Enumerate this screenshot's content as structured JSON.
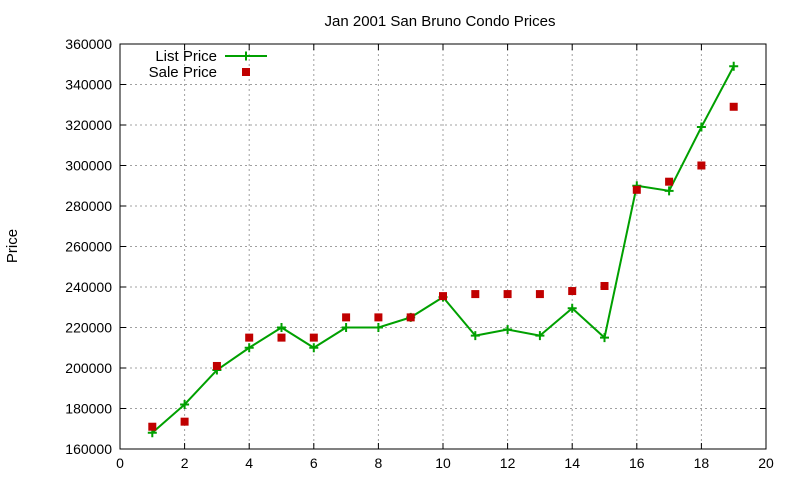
{
  "chart_data": {
    "type": "scatter",
    "title": "Jan 2001 San Bruno Condo Prices",
    "xlabel": "",
    "ylabel": "Price",
    "xlim": [
      0,
      20
    ],
    "ylim": [
      160000,
      360000
    ],
    "xticks": [
      "0",
      "2",
      "4",
      "6",
      "8",
      "10",
      "12",
      "14",
      "16",
      "18",
      "20"
    ],
    "yticks": [
      "160000",
      "180000",
      "200000",
      "220000",
      "240000",
      "260000",
      "280000",
      "300000",
      "320000",
      "340000",
      "360000"
    ],
    "grid": true,
    "legend_position": "top-left",
    "series": [
      {
        "name": "List Price",
        "style": "line-points",
        "marker": "plus",
        "color": "#00a000",
        "x": [
          1,
          2,
          3,
          4,
          5,
          6,
          7,
          8,
          9,
          10,
          11,
          12,
          13,
          14,
          15,
          16,
          17,
          18,
          19
        ],
        "y": [
          168000,
          182000,
          199000,
          210000,
          220000,
          210000,
          220000,
          220000,
          225000,
          235000,
          216000,
          219000,
          216000,
          229500,
          215000,
          290000,
          287500,
          319000,
          349000
        ]
      },
      {
        "name": "Sale Price",
        "style": "points",
        "marker": "square",
        "color": "#c00000",
        "x": [
          1,
          2,
          3,
          4,
          5,
          6,
          7,
          8,
          9,
          10,
          11,
          12,
          13,
          14,
          15,
          16,
          17,
          18,
          19
        ],
        "y": [
          171000,
          173500,
          201000,
          215000,
          215000,
          215000,
          225000,
          225000,
          225000,
          235500,
          236500,
          236500,
          236500,
          238000,
          240500,
          288000,
          292000,
          300000,
          329000
        ]
      }
    ]
  }
}
